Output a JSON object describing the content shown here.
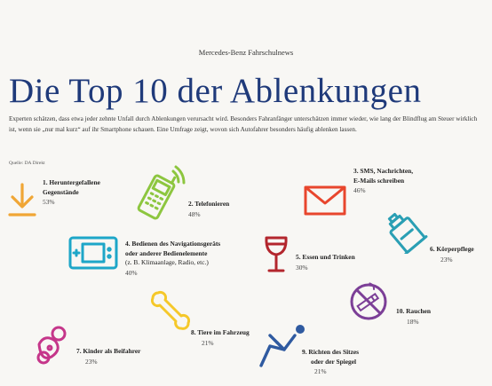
{
  "publication": "Mercedes-Benz Fahrschulnews",
  "title": "Die Top 10 der Ablenkungen",
  "intro": "Experten schätzen, dass etwa jeder zehnte Unfall durch Ablenkungen verursacht wird. Besonders Fahranfänger unterschätzen immer wieder, wie lang der Blindflug am Steuer wirklich ist, wenn sie „nur mal kurz“ auf ihr Smartphone schauen. Eine Umfrage zeigt, wovon sich Autofahrer besonders häufig ablenken lassen.",
  "source": "Quelle: DA Direkt",
  "colors": {
    "title": "#1f3a7a",
    "orange": "#f0a635",
    "green": "#8dc63f",
    "red": "#e8462d",
    "teal": "#1da6c8",
    "blue": "#2e7fc2",
    "darkred": "#b3262d",
    "yellow": "#f5c82a",
    "purple": "#7c3f97",
    "magenta": "#c5368a",
    "navy": "#2f5aa0"
  },
  "items": [
    {
      "label_l1": "1. Heruntergefallene",
      "label_l2": "Gegenstände",
      "percent": "53%",
      "icon": "arrow-down-icon"
    },
    {
      "label_l1": "2. Telefonieren",
      "percent": "48%",
      "icon": "mobile-phone-icon"
    },
    {
      "label_l1": "3. SMS, Nachrichten,",
      "label_l2": "E-Mails schreiben",
      "percent": "46%",
      "icon": "envelope-icon"
    },
    {
      "label_l1": "4. Bedienen des Navigationsgeräts",
      "label_l2": "oder anderer Bedienelemente",
      "note": "(z. B. Klimaanlage, Radio, etc.)",
      "percent": "40%",
      "icon": "navigation-device-icon"
    },
    {
      "label_l1": "5. Essen und Trinken",
      "percent": "30%",
      "icon": "wine-glass-icon"
    },
    {
      "label_l1": "6. Körperpflege",
      "percent": "23%",
      "icon": "lotion-tube-icon"
    },
    {
      "label_l1": "7. Kinder als Beifahrer",
      "percent": "23%",
      "icon": "pacifier-icon"
    },
    {
      "label_l1": "8. Tiere im Fahrzeug",
      "percent": "21%",
      "icon": "dog-bone-icon"
    },
    {
      "label_l1": "9. Richten des Sitzes",
      "label_l2": "oder der Spiegel",
      "percent": "21%",
      "icon": "seated-person-icon"
    },
    {
      "label_l1": "10. Rauchen",
      "percent": "18%",
      "icon": "no-smoking-icon"
    }
  ]
}
